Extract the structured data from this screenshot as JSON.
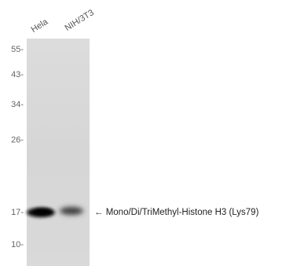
{
  "lanes": [
    "Hela",
    "NIH/3T3"
  ],
  "markers": [
    "55-",
    "43-",
    "34-",
    "26-",
    "17-",
    "10-"
  ],
  "band_label": "← Mono/Di/TriMethyl-Histone H3 (Lys79)"
}
